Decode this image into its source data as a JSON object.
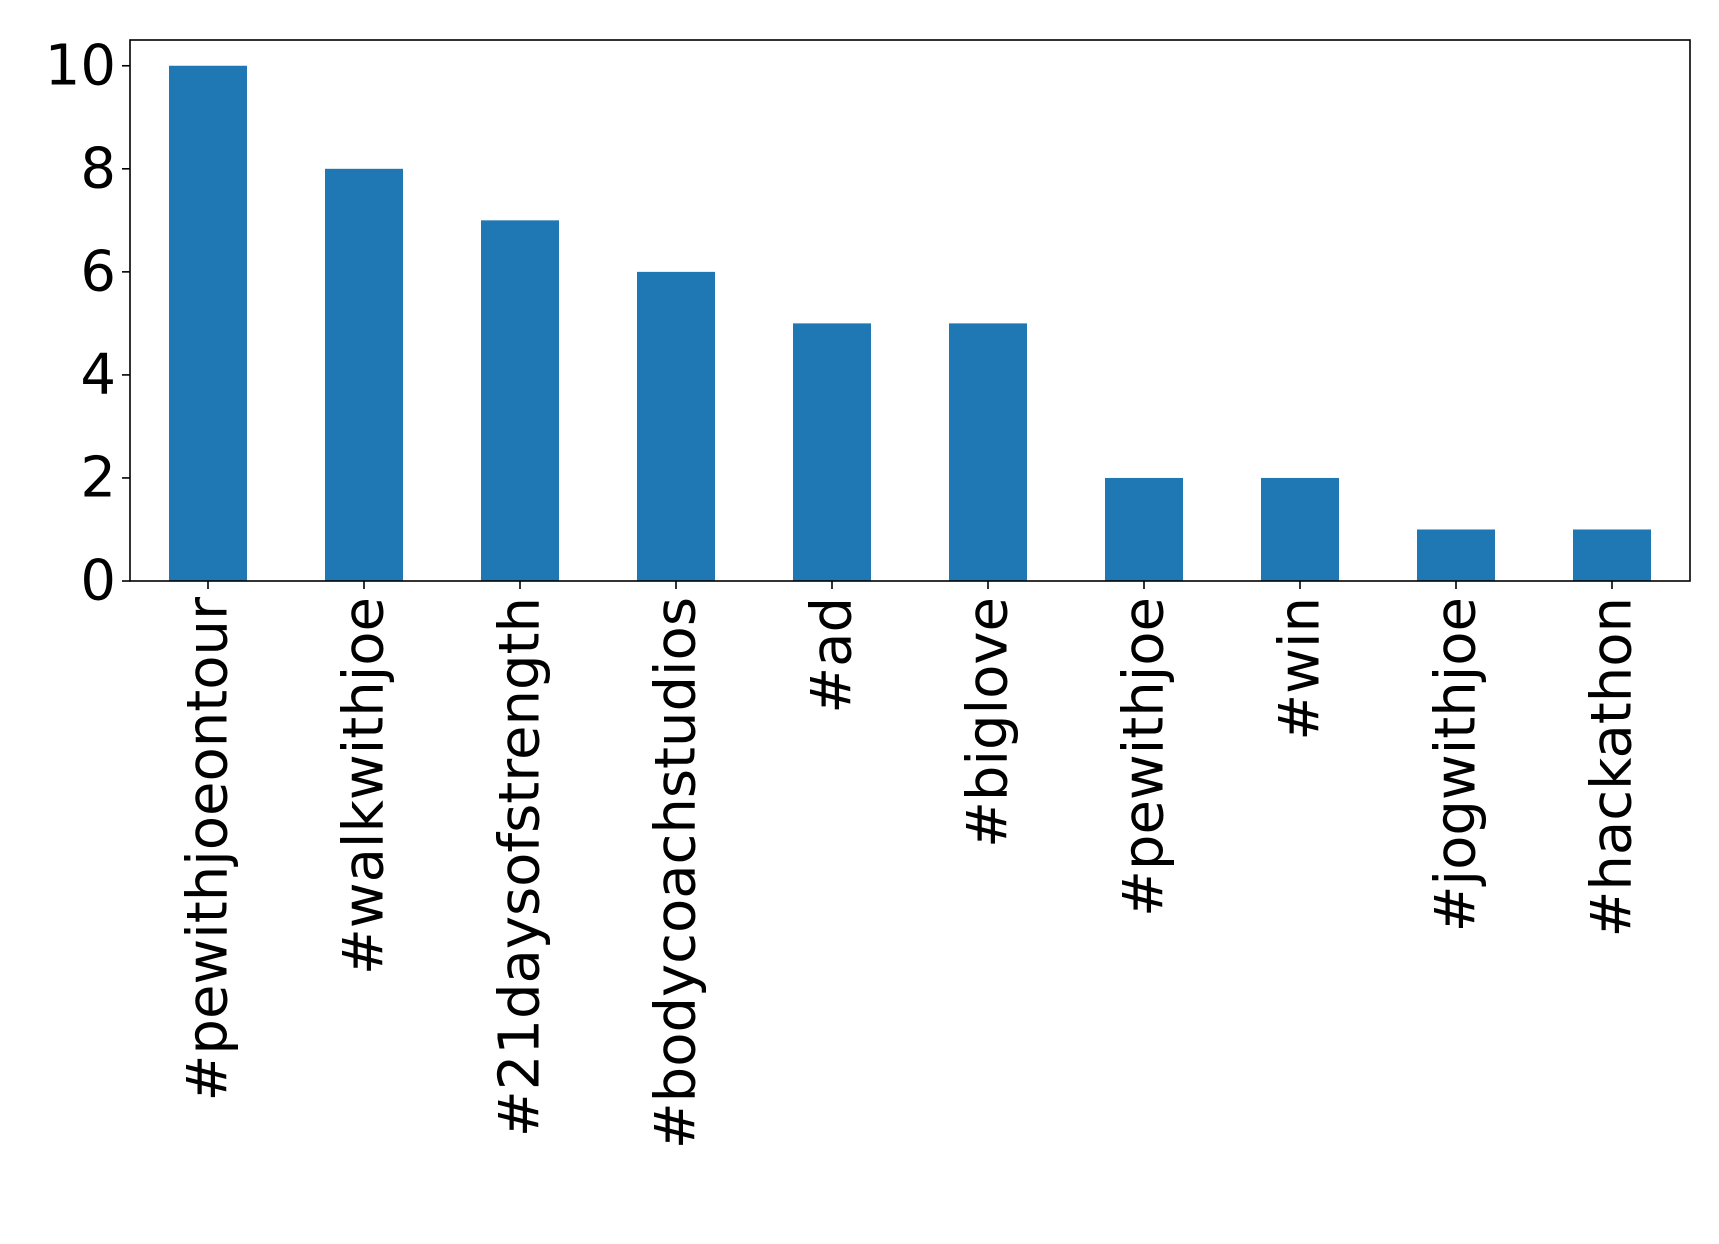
{
  "chart_data": {
    "type": "bar",
    "title": "",
    "xlabel": "",
    "ylabel": "",
    "categories": [
      "#pewithjoeontour",
      "#walkwithjoe",
      "#21daysofstrength",
      "#bodycoachstudios",
      "#ad",
      "#biglove",
      "#pewithjoe",
      "#win",
      "#jogwithjoe",
      "#hackathon"
    ],
    "values": [
      10,
      8,
      7,
      6,
      5,
      5,
      2,
      2,
      1,
      1
    ],
    "ylim": [
      0,
      10.5
    ],
    "yticks": [
      "0",
      "2",
      "4",
      "6",
      "8",
      "10"
    ],
    "bar_color": "#1f77b4",
    "grid": false,
    "legend": false
  }
}
